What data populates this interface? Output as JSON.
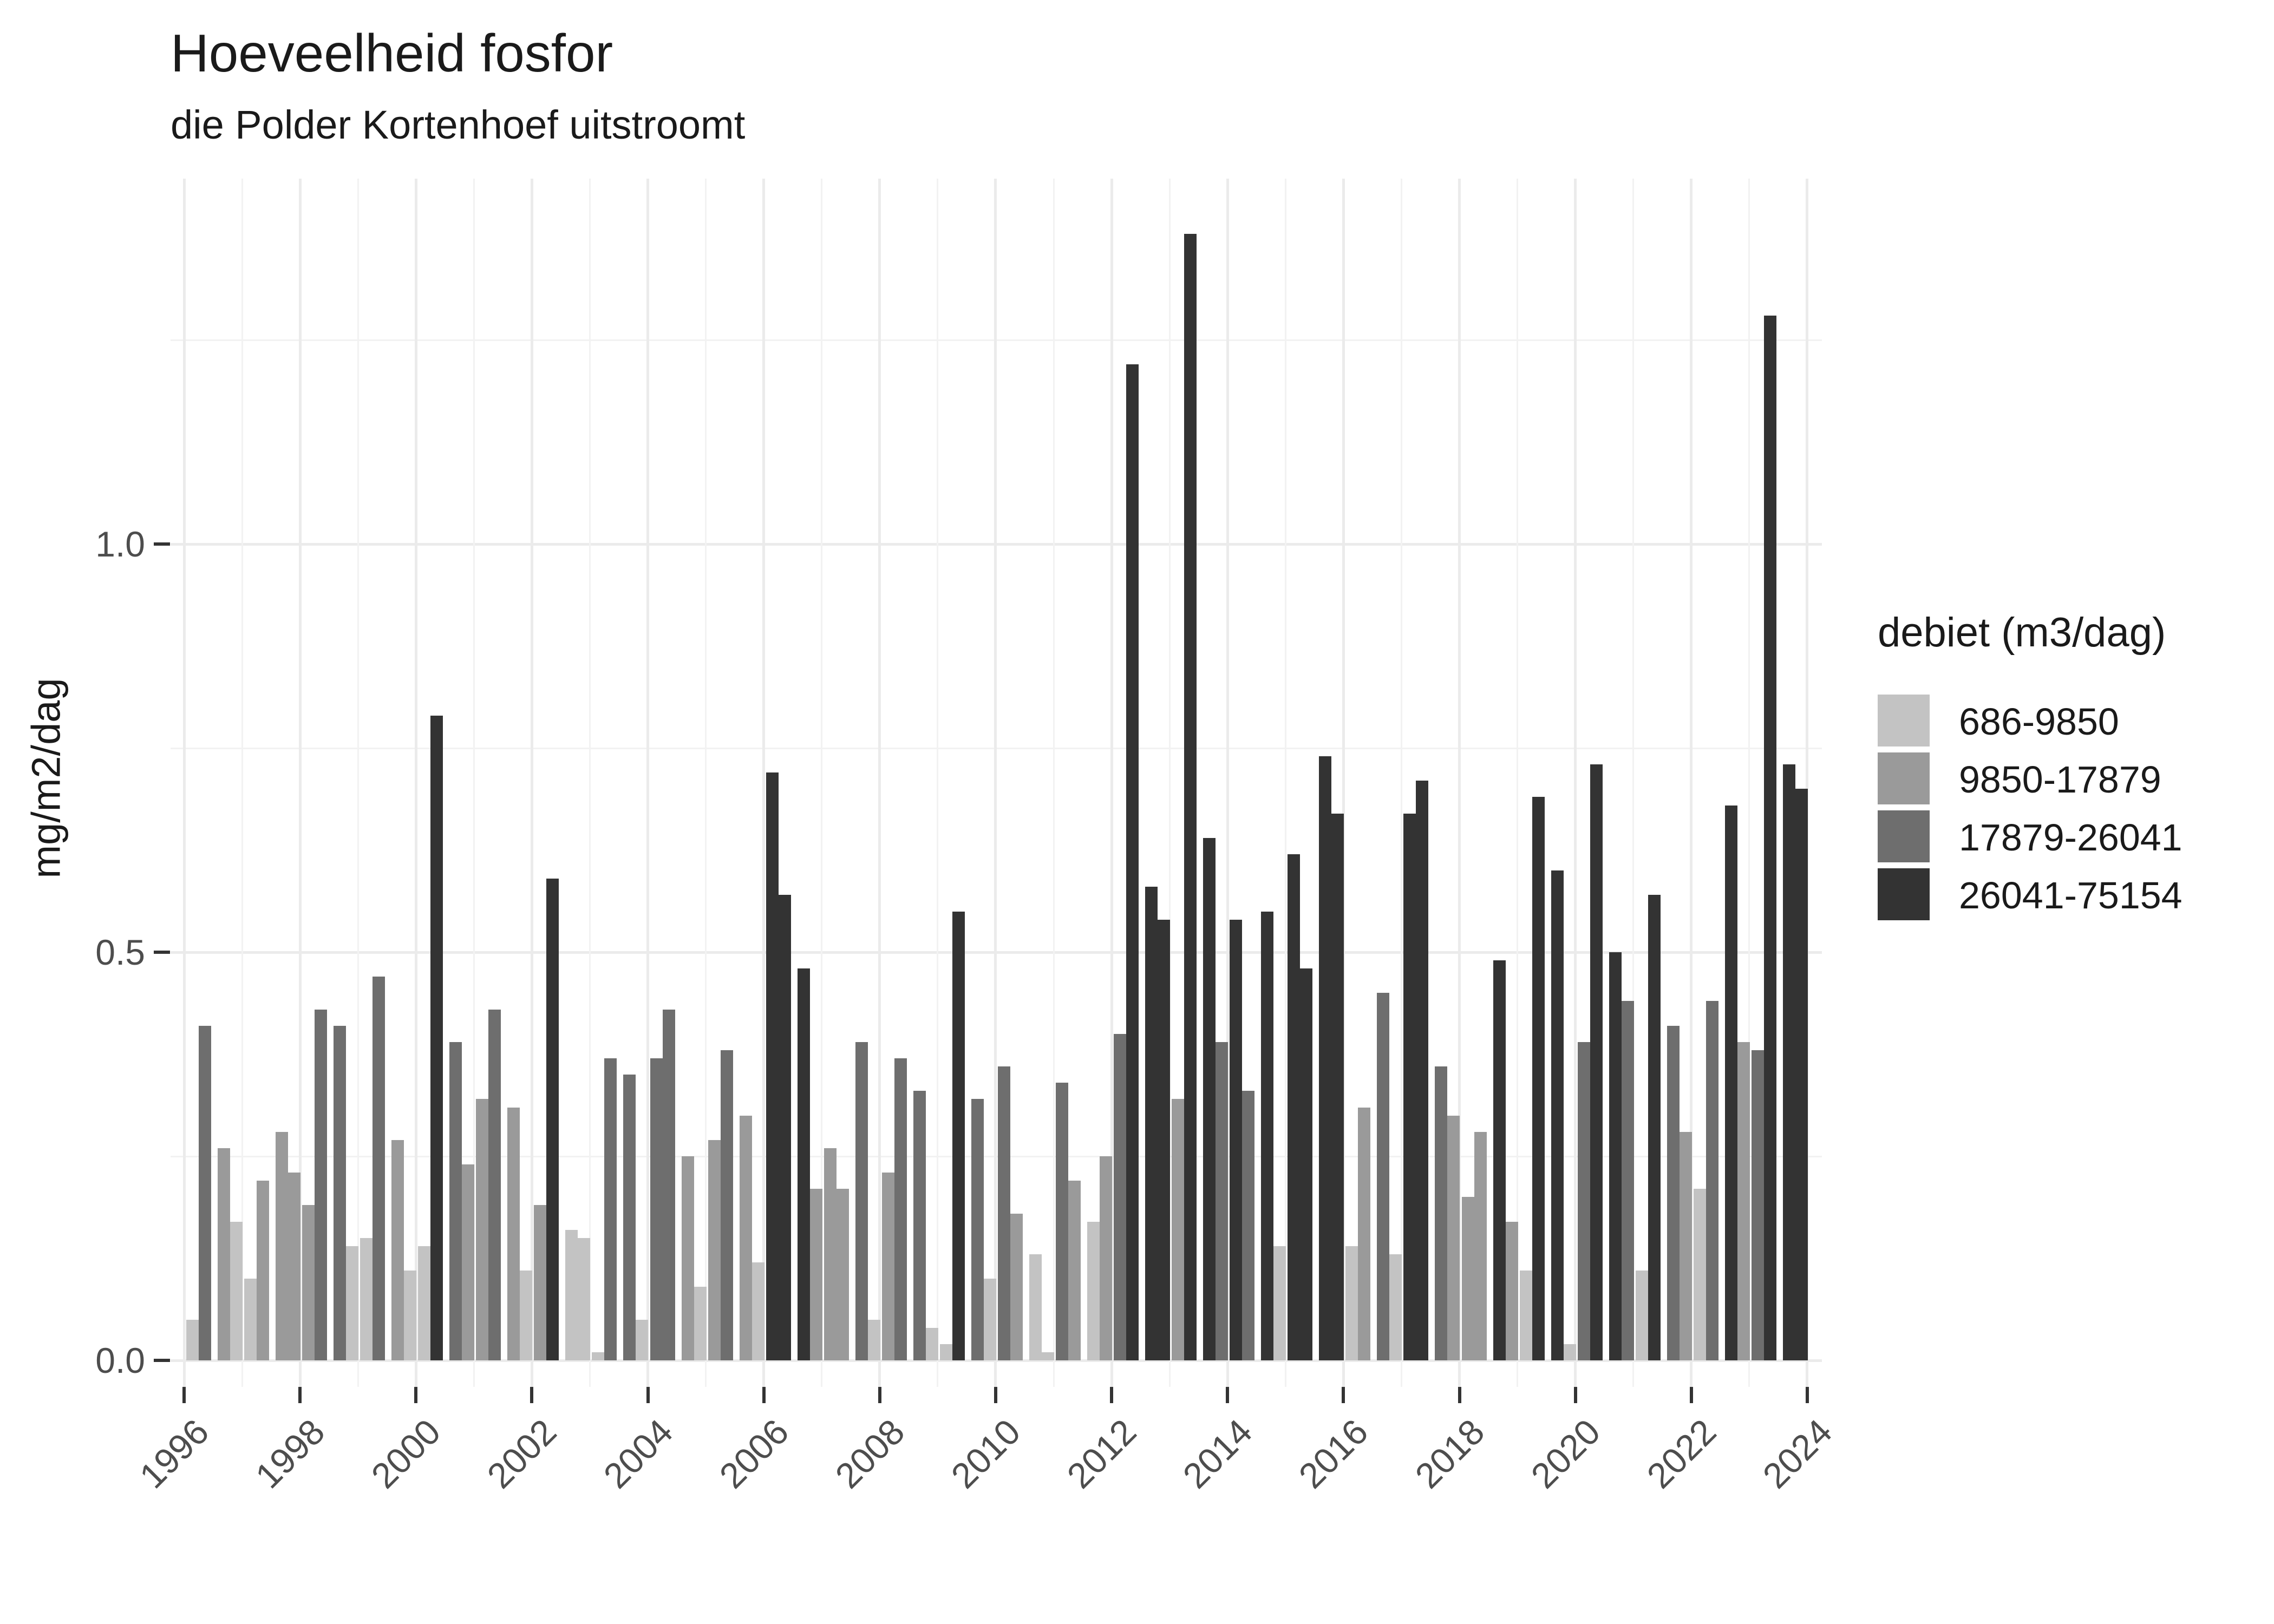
{
  "header": {
    "title": "Hoeveelheid fosfor",
    "subtitle": "die Polder Kortenhoef uitstroomt"
  },
  "chart_data": {
    "type": "bar",
    "title": "Hoeveelheid fosfor",
    "subtitle": "die Polder Kortenhoef uitstroomt",
    "xlabel": "",
    "ylabel": "mg/m2/dag",
    "ylim": [
      0,
      1.45
    ],
    "y_major_ticks": [
      0.0,
      0.5,
      1.0
    ],
    "y_minor_ticks": [
      0.25,
      0.75,
      1.25
    ],
    "y_tick_labels": [
      "0.0",
      "0.5",
      "1.0"
    ],
    "x_tick_labels": [
      "1996",
      "1998",
      "2000",
      "2002",
      "2004",
      "2006",
      "2008",
      "2010",
      "2012",
      "2014",
      "2016",
      "2018",
      "2020",
      "2022",
      "2024"
    ],
    "grid": "on",
    "legend_position": "right",
    "legend": {
      "title": "debiet (m3/dag)",
      "entries": [
        {
          "label": "686-9850",
          "color": "#c3c3c3"
        },
        {
          "label": "9850-17879",
          "color": "#9a9a9a"
        },
        {
          "label": "17879-26041",
          "color": "#6e6e6e"
        },
        {
          "label": "26041-75154",
          "color": "#333333"
        }
      ]
    },
    "series_note": "values = [mg/m2/dag, debiet-class-index] per quarter-slot of each year; class index refers to legend.entries",
    "years": [
      {
        "year": 1996,
        "values": [
          [
            0.05,
            0
          ],
          [
            0.41,
            2
          ],
          [
            0.26,
            1
          ],
          [
            0.17,
            0
          ]
        ]
      },
      {
        "year": 1997,
        "values": [
          [
            0.1,
            0
          ],
          [
            0.22,
            1
          ],
          [
            0.28,
            1
          ],
          [
            0.23,
            1
          ]
        ]
      },
      {
        "year": 1998,
        "values": [
          [
            0.19,
            1
          ],
          [
            0.43,
            2
          ],
          [
            0.41,
            2
          ],
          [
            0.14,
            0
          ]
        ]
      },
      {
        "year": 1999,
        "values": [
          [
            0.15,
            0
          ],
          [
            0.47,
            2
          ],
          [
            0.27,
            1
          ],
          [
            0.11,
            0
          ]
        ]
      },
      {
        "year": 2000,
        "values": [
          [
            0.14,
            0
          ],
          [
            0.79,
            3
          ],
          [
            0.39,
            2
          ],
          [
            0.24,
            1
          ]
        ]
      },
      {
        "year": 2001,
        "values": [
          [
            0.32,
            1
          ],
          [
            0.43,
            2
          ],
          [
            0.31,
            1
          ],
          [
            0.11,
            0
          ]
        ]
      },
      {
        "year": 2002,
        "values": [
          [
            0.19,
            1
          ],
          [
            0.59,
            3
          ],
          [
            0.16,
            0
          ],
          [
            0.15,
            0
          ]
        ]
      },
      {
        "year": 2003,
        "values": [
          [
            0.01,
            0
          ],
          [
            0.37,
            2
          ],
          [
            0.35,
            2
          ],
          [
            0.05,
            0
          ]
        ]
      },
      {
        "year": 2004,
        "values": [
          [
            0.37,
            2
          ],
          [
            0.43,
            2
          ],
          [
            0.25,
            1
          ],
          [
            0.09,
            0
          ]
        ]
      },
      {
        "year": 2005,
        "values": [
          [
            0.27,
            1
          ],
          [
            0.38,
            2
          ],
          [
            0.3,
            1
          ],
          [
            0.12,
            0
          ]
        ]
      },
      {
        "year": 2006,
        "values": [
          [
            0.72,
            3
          ],
          [
            0.57,
            3
          ],
          [
            0.48,
            3
          ],
          [
            0.21,
            1
          ]
        ]
      },
      {
        "year": 2007,
        "values": [
          [
            0.26,
            1
          ],
          [
            0.21,
            1
          ],
          [
            0.39,
            2
          ],
          [
            0.05,
            0
          ]
        ]
      },
      {
        "year": 2008,
        "values": [
          [
            0.23,
            1
          ],
          [
            0.37,
            2
          ],
          [
            0.33,
            2
          ],
          [
            0.04,
            0
          ]
        ]
      },
      {
        "year": 2009,
        "values": [
          [
            0.02,
            0
          ],
          [
            0.55,
            3
          ],
          [
            0.32,
            2
          ],
          [
            0.1,
            0
          ]
        ]
      },
      {
        "year": 2010,
        "values": [
          [
            0.36,
            2
          ],
          [
            0.18,
            1
          ],
          [
            0.13,
            0
          ],
          [
            0.01,
            0
          ]
        ]
      },
      {
        "year": 2011,
        "values": [
          [
            0.34,
            2
          ],
          [
            0.22,
            1
          ],
          [
            0.17,
            0
          ],
          [
            0.25,
            1
          ]
        ]
      },
      {
        "year": 2012,
        "values": [
          [
            0.4,
            2
          ],
          [
            1.22,
            3
          ],
          [
            0.58,
            3
          ],
          [
            0.54,
            3
          ]
        ]
      },
      {
        "year": 2013,
        "values": [
          [
            0.32,
            1
          ],
          [
            1.38,
            3
          ],
          [
            0.64,
            3
          ],
          [
            0.39,
            2
          ]
        ]
      },
      {
        "year": 2014,
        "values": [
          [
            0.54,
            3
          ],
          [
            0.33,
            2
          ],
          [
            0.55,
            3
          ],
          [
            0.14,
            0
          ]
        ]
      },
      {
        "year": 2015,
        "values": [
          [
            0.62,
            3
          ],
          [
            0.48,
            3
          ],
          [
            0.74,
            3
          ],
          [
            0.67,
            3
          ]
        ]
      },
      {
        "year": 2016,
        "values": [
          [
            0.14,
            0
          ],
          [
            0.31,
            1
          ],
          [
            0.45,
            2
          ],
          [
            0.13,
            0
          ]
        ]
      },
      {
        "year": 2017,
        "values": [
          [
            0.67,
            3
          ],
          [
            0.71,
            3
          ],
          [
            0.36,
            2
          ],
          [
            0.3,
            1
          ]
        ]
      },
      {
        "year": 2018,
        "values": [
          [
            0.2,
            1
          ],
          [
            0.28,
            1
          ],
          [
            0.49,
            3
          ],
          [
            0.17,
            1
          ]
        ]
      },
      {
        "year": 2019,
        "values": [
          [
            0.11,
            0
          ],
          [
            0.69,
            3
          ],
          [
            0.6,
            3
          ],
          [
            0.02,
            0
          ]
        ]
      },
      {
        "year": 2020,
        "values": [
          [
            0.39,
            2
          ],
          [
            0.73,
            3
          ],
          [
            0.5,
            3
          ],
          [
            0.44,
            2
          ]
        ]
      },
      {
        "year": 2021,
        "values": [
          [
            0.11,
            0
          ],
          [
            0.57,
            3
          ],
          [
            0.41,
            2
          ],
          [
            0.28,
            1
          ]
        ]
      },
      {
        "year": 2022,
        "values": [
          [
            0.21,
            0
          ],
          [
            0.44,
            2
          ],
          [
            0.68,
            3
          ],
          [
            0.39,
            1
          ]
        ]
      },
      {
        "year": 2023,
        "values": [
          [
            0.38,
            2
          ],
          [
            1.28,
            3
          ],
          [
            0.73,
            3
          ],
          [
            0.7,
            3
          ]
        ]
      }
    ]
  }
}
